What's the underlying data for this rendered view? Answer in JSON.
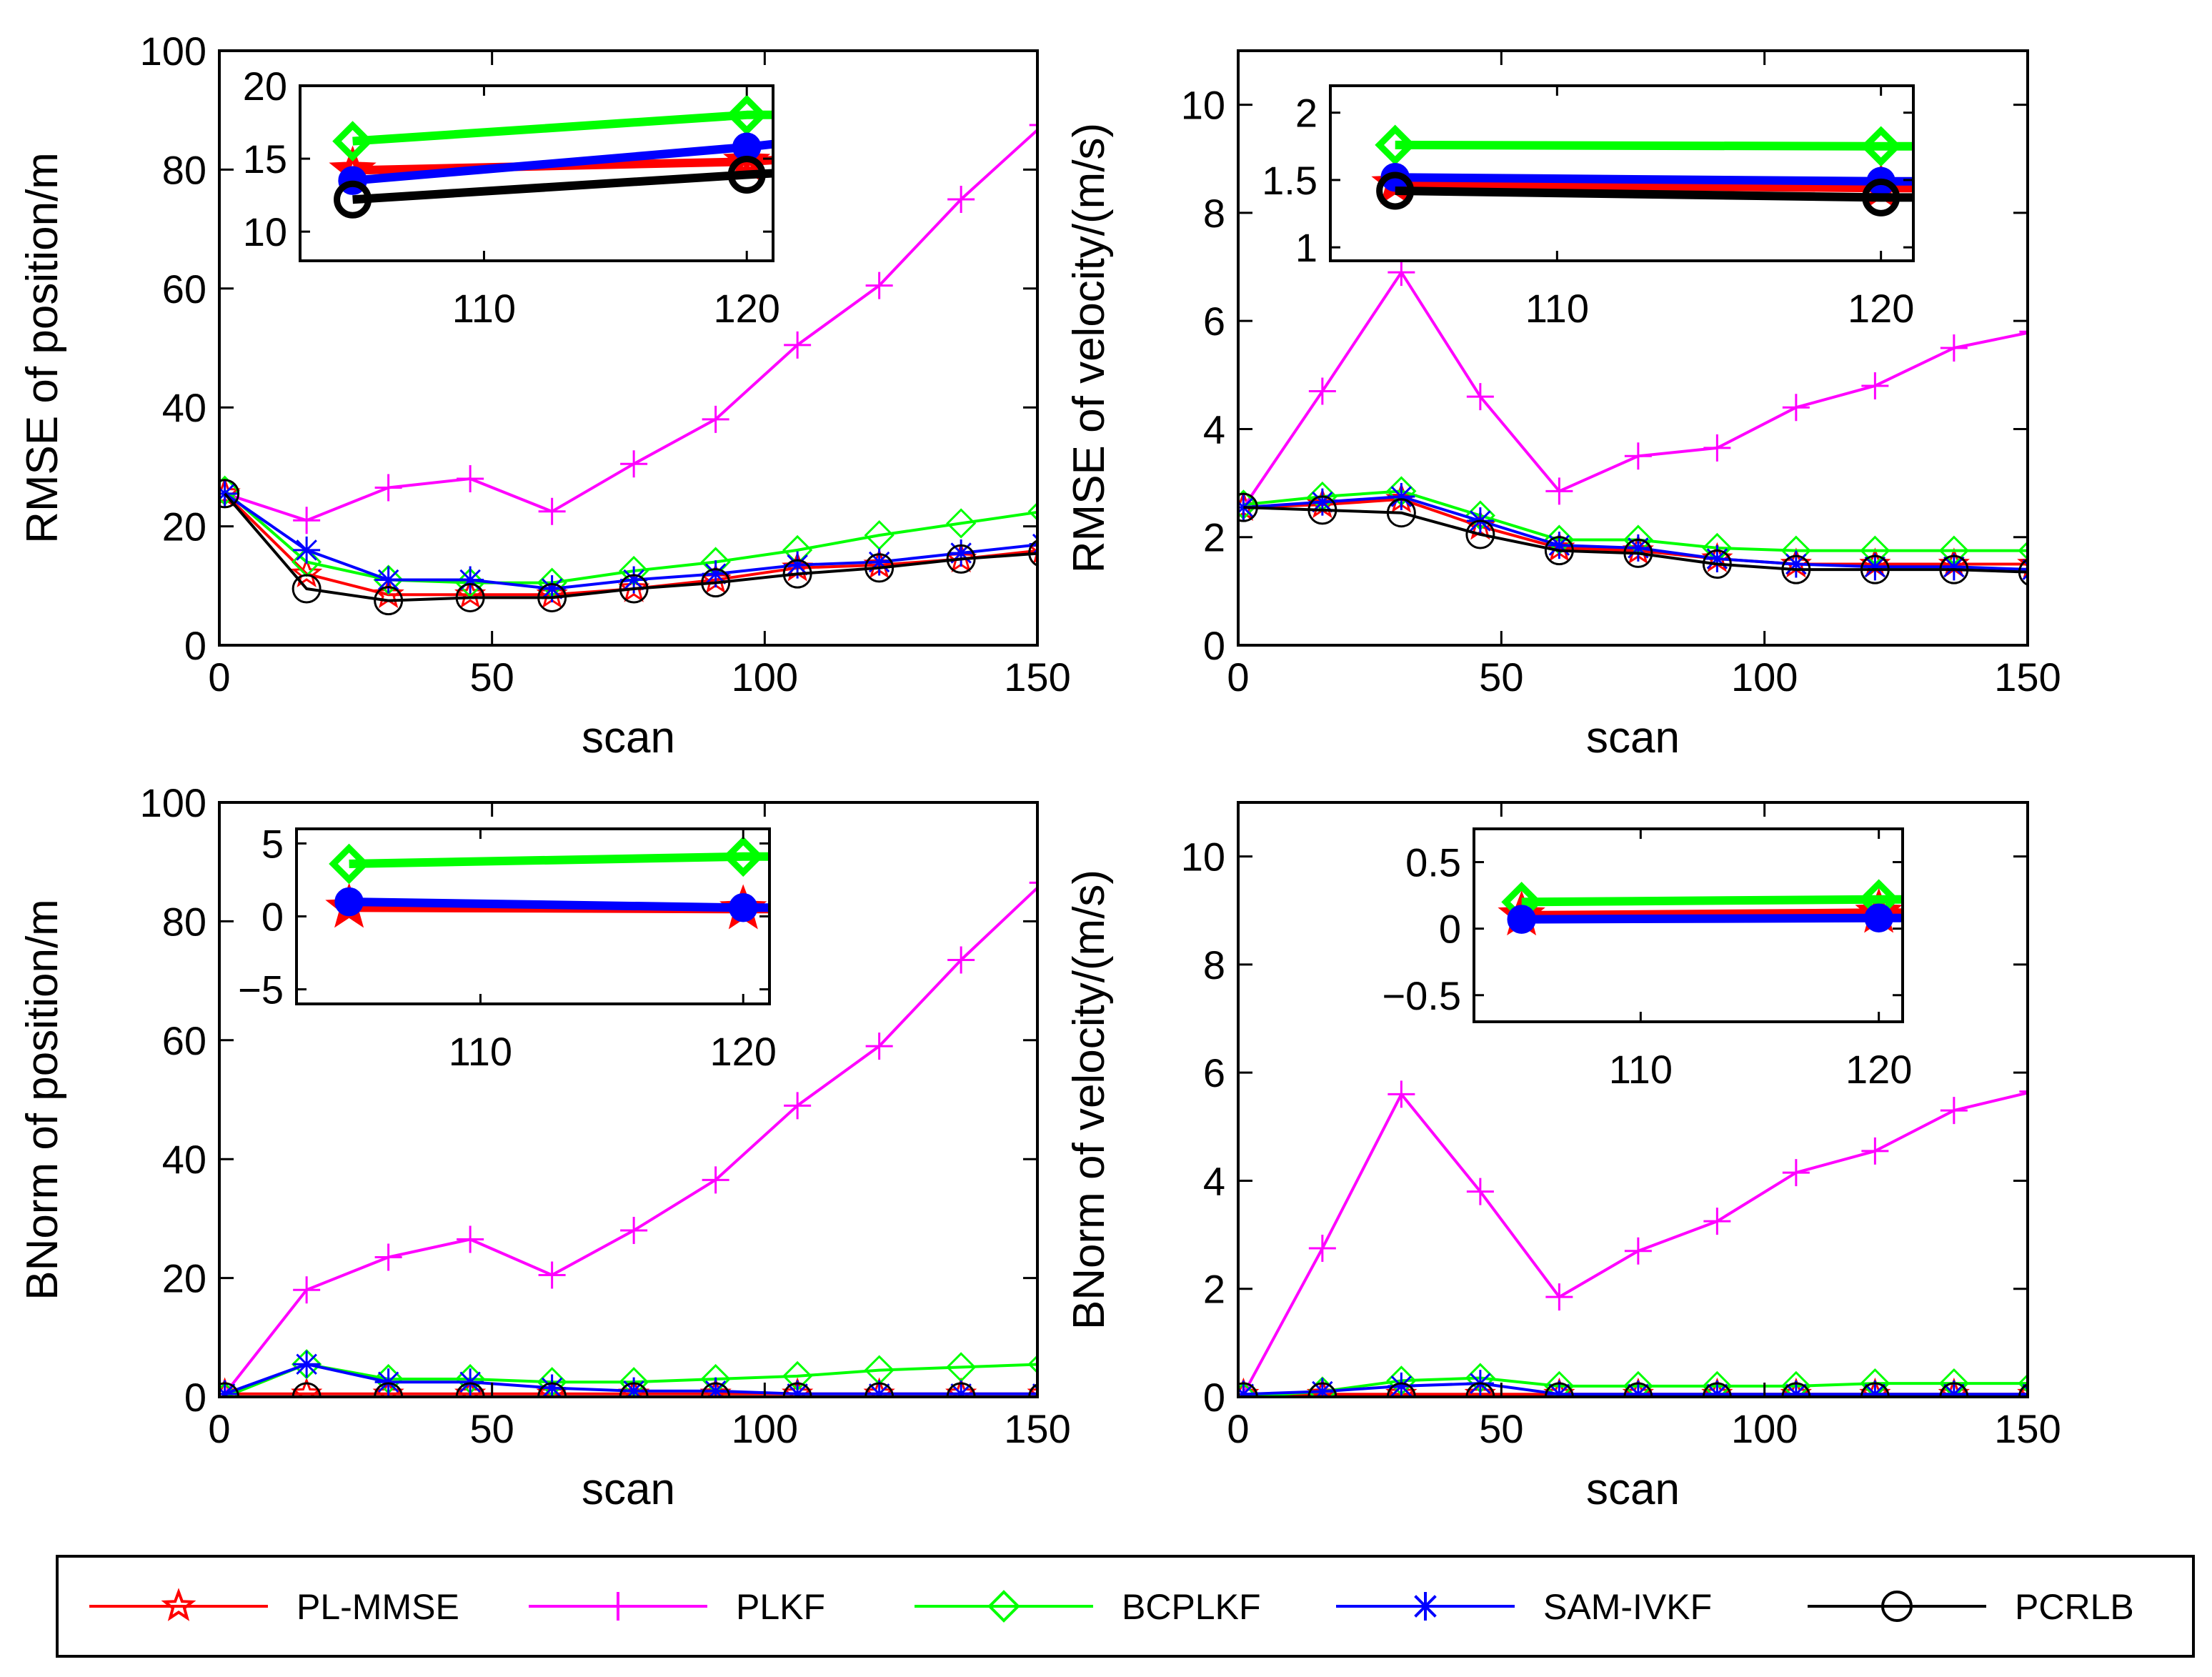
{
  "legend": {
    "items": [
      {
        "label": "PL-MMSE",
        "color": "#ff0000",
        "marker": "star-icon"
      },
      {
        "label": "PLKF",
        "color": "#ff00ff",
        "marker": "plus-icon"
      },
      {
        "label": "BCPLKF",
        "color": "#00ff00",
        "marker": "diamond-icon"
      },
      {
        "label": "SAM-IVKF",
        "color": "#0000ff",
        "marker": "asterisk-icon"
      },
      {
        "label": "PCRLB",
        "color": "#000000",
        "marker": "circle-icon"
      }
    ]
  },
  "chart_data": [
    {
      "id": "rmse-position",
      "type": "line",
      "title": "",
      "xlabel": "scan",
      "ylabel": "RMSE of position/m",
      "xlim": [
        0,
        150
      ],
      "ylim": [
        0,
        100
      ],
      "xticks": [
        0,
        50,
        100,
        150
      ],
      "yticks": [
        0,
        20,
        40,
        60,
        80,
        100
      ],
      "x": [
        1,
        16,
        31,
        46,
        61,
        76,
        91,
        106,
        121,
        136,
        151
      ],
      "series": [
        {
          "name": "PL-MMSE",
          "values": [
            25.5,
            12,
            8.5,
            8.5,
            8.5,
            9.5,
            11,
            13,
            13.5,
            14.5,
            16
          ]
        },
        {
          "name": "PLKF",
          "values": [
            25.5,
            21,
            26.5,
            28,
            22.5,
            30.5,
            38,
            50.5,
            60.5,
            75,
            87.5
          ]
        },
        {
          "name": "BCPLKF",
          "values": [
            26,
            14,
            11,
            10.5,
            10.5,
            12.5,
            14,
            16,
            18.5,
            20.5,
            22.5
          ]
        },
        {
          "name": "SAM-IVKF",
          "values": [
            25.5,
            16,
            11,
            11,
            9.5,
            11,
            12,
            13.5,
            14,
            15.5,
            17
          ]
        },
        {
          "name": "PCRLB",
          "values": [
            25.5,
            9.5,
            7.5,
            8,
            8,
            9.5,
            10.5,
            12,
            13,
            14.5,
            15.5
          ]
        }
      ],
      "inset": {
        "xlim": [
          103,
          121
        ],
        "ylim": [
          8,
          20
        ],
        "xticks": [
          110,
          120
        ],
        "yticks": [
          10,
          15,
          20
        ],
        "x": [
          105,
          120,
          121
        ],
        "series": [
          {
            "name": "PL-MMSE",
            "values": [
              14.2,
              14.8,
              14.9
            ]
          },
          {
            "name": "BCPLKF",
            "values": [
              16.2,
              18.0,
              18.0
            ]
          },
          {
            "name": "SAM-IVKF",
            "values": [
              13.5,
              15.8,
              16.0
            ]
          },
          {
            "name": "PCRLB",
            "values": [
              12.2,
              13.9,
              14.0
            ]
          }
        ]
      }
    },
    {
      "id": "rmse-velocity",
      "type": "line",
      "title": "",
      "xlabel": "scan",
      "ylabel": "RMSE of velocity/(m/s)",
      "xlim": [
        0,
        150
      ],
      "ylim": [
        0,
        11
      ],
      "xticks": [
        0,
        50,
        100,
        150
      ],
      "yticks": [
        0,
        2,
        4,
        6,
        8,
        10
      ],
      "x": [
        1,
        16,
        31,
        46,
        61,
        76,
        91,
        106,
        121,
        136,
        151
      ],
      "series": [
        {
          "name": "PL-MMSE",
          "values": [
            2.55,
            2.6,
            2.7,
            2.2,
            1.8,
            1.75,
            1.6,
            1.5,
            1.5,
            1.5,
            1.5
          ]
        },
        {
          "name": "PLKF",
          "values": [
            2.55,
            4.7,
            6.9,
            4.6,
            2.85,
            3.5,
            3.65,
            4.4,
            4.8,
            5.5,
            5.8
          ]
        },
        {
          "name": "BCPLKF",
          "values": [
            2.6,
            2.75,
            2.85,
            2.4,
            1.95,
            1.95,
            1.8,
            1.75,
            1.75,
            1.75,
            1.75
          ]
        },
        {
          "name": "SAM-IVKF",
          "values": [
            2.55,
            2.65,
            2.75,
            2.3,
            1.85,
            1.8,
            1.6,
            1.5,
            1.45,
            1.45,
            1.4
          ]
        },
        {
          "name": "PCRLB",
          "values": [
            2.55,
            2.5,
            2.45,
            2.05,
            1.75,
            1.7,
            1.5,
            1.4,
            1.4,
            1.4,
            1.35
          ]
        }
      ],
      "inset": {
        "xlim": [
          103,
          121
        ],
        "ylim": [
          0.9,
          2.2
        ],
        "xticks": [
          110,
          120
        ],
        "yticks": [
          1,
          1.5,
          2
        ],
        "yticklabels": [
          "1",
          "1.5",
          "2"
        ],
        "x": [
          105,
          120,
          121
        ],
        "series": [
          {
            "name": "PL-MMSE",
            "values": [
              1.47,
              1.44,
              1.44
            ]
          },
          {
            "name": "BCPLKF",
            "values": [
              1.76,
              1.75,
              1.75
            ]
          },
          {
            "name": "SAM-IVKF",
            "values": [
              1.52,
              1.49,
              1.49
            ]
          },
          {
            "name": "PCRLB",
            "values": [
              1.42,
              1.37,
              1.37
            ]
          }
        ]
      }
    },
    {
      "id": "bnorm-position",
      "type": "line",
      "title": "",
      "xlabel": "scan",
      "ylabel": "BNorm of position/m",
      "xlim": [
        0,
        150
      ],
      "ylim": [
        0,
        100
      ],
      "xticks": [
        0,
        50,
        100,
        150
      ],
      "yticks": [
        0,
        20,
        40,
        60,
        80,
        100
      ],
      "x": [
        1,
        16,
        31,
        46,
        61,
        76,
        91,
        106,
        121,
        136,
        151
      ],
      "series": [
        {
          "name": "PL-MMSE",
          "values": [
            0.5,
            0.5,
            0.5,
            0.5,
            0.5,
            0.5,
            0.5,
            0.5,
            0.5,
            0.5,
            0.5
          ]
        },
        {
          "name": "PLKF",
          "values": [
            0.5,
            18,
            23.5,
            26.5,
            20.5,
            28,
            36.5,
            49,
            59,
            73.5,
            86.5
          ]
        },
        {
          "name": "BCPLKF",
          "values": [
            0,
            5.5,
            3,
            3,
            2.5,
            2.5,
            3,
            3.5,
            4.5,
            5,
            5.5
          ]
        },
        {
          "name": "SAM-IVKF",
          "values": [
            0.5,
            5.5,
            2.5,
            2.5,
            1.5,
            1,
            1,
            0.5,
            0.5,
            0.5,
            0.5
          ]
        },
        {
          "name": "PCRLB",
          "values": [
            0,
            0,
            0,
            0,
            0,
            0,
            0,
            0,
            0,
            0,
            0
          ]
        }
      ],
      "inset": {
        "xlim": [
          103,
          121
        ],
        "ylim": [
          -6,
          6
        ],
        "xticks": [
          110,
          120
        ],
        "yticks": [
          -5,
          0,
          5
        ],
        "yticklabels": [
          "−5",
          "0",
          "5"
        ],
        "x": [
          105,
          120,
          121
        ],
        "series": [
          {
            "name": "PL-MMSE",
            "values": [
              0.6,
              0.5,
              0.5
            ]
          },
          {
            "name": "BCPLKF",
            "values": [
              3.6,
              4.1,
              4.1
            ]
          },
          {
            "name": "SAM-IVKF",
            "values": [
              1.0,
              0.6,
              0.6
            ]
          }
        ]
      }
    },
    {
      "id": "bnorm-velocity",
      "type": "line",
      "title": "",
      "xlabel": "scan",
      "ylabel": "BNorm of velocity/(m/s)",
      "xlim": [
        0,
        150
      ],
      "ylim": [
        0,
        11
      ],
      "xticks": [
        0,
        50,
        100,
        150
      ],
      "yticks": [
        0,
        2,
        4,
        6,
        8,
        10
      ],
      "x": [
        1,
        16,
        31,
        46,
        61,
        76,
        91,
        106,
        121,
        136,
        151
      ],
      "series": [
        {
          "name": "PL-MMSE",
          "values": [
            0.05,
            0.05,
            0.05,
            0.05,
            0.05,
            0.05,
            0.05,
            0.05,
            0.05,
            0.05,
            0.05
          ]
        },
        {
          "name": "PLKF",
          "values": [
            0.05,
            2.75,
            5.6,
            3.8,
            1.85,
            2.7,
            3.25,
            4.15,
            4.55,
            5.3,
            5.65
          ]
        },
        {
          "name": "BCPLKF",
          "values": [
            0,
            0.1,
            0.3,
            0.35,
            0.2,
            0.2,
            0.2,
            0.2,
            0.25,
            0.25,
            0.25
          ]
        },
        {
          "name": "SAM-IVKF",
          "values": [
            0.05,
            0.1,
            0.2,
            0.25,
            0.05,
            0.05,
            0.05,
            0.05,
            0.05,
            0.05,
            0.05
          ]
        },
        {
          "name": "PCRLB",
          "values": [
            0,
            0,
            0,
            0,
            0,
            0,
            0,
            0,
            0,
            0,
            0
          ]
        }
      ],
      "inset": {
        "xlim": [
          103,
          121
        ],
        "ylim": [
          -0.7,
          0.75
        ],
        "xticks": [
          110,
          120
        ],
        "yticks": [
          -0.5,
          0,
          0.5
        ],
        "yticklabels": [
          "−0.5",
          "0",
          "0.5"
        ],
        "x": [
          105,
          120,
          121
        ],
        "series": [
          {
            "name": "PL-MMSE",
            "values": [
              0.1,
              0.12,
              0.12
            ]
          },
          {
            "name": "BCPLKF",
            "values": [
              0.2,
              0.22,
              0.22
            ]
          },
          {
            "name": "SAM-IVKF",
            "values": [
              0.07,
              0.08,
              0.08
            ]
          }
        ]
      }
    }
  ]
}
